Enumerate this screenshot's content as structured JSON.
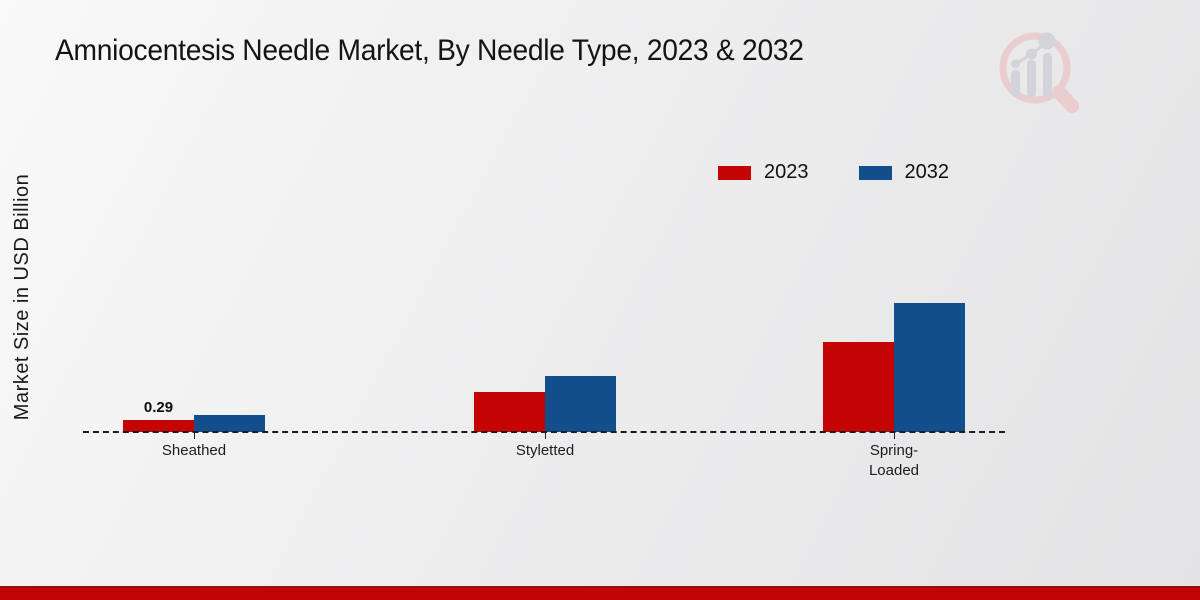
{
  "header": {
    "title": "Amniocentesis Needle Market, By Needle Type, 2023 & 2032"
  },
  "watermark": {
    "icon": "market-research-future-logo"
  },
  "chart_data": {
    "type": "bar",
    "title": "Amniocentesis Needle Market, By Needle Type, 2023 & 2032",
    "ylabel": "Market Size in USD Billion",
    "xlabel": "",
    "categories": [
      "Sheathed",
      "Styletted",
      "Spring-Loaded"
    ],
    "series": [
      {
        "name": "2023",
        "color": "#c50404",
        "values": [
          0.29,
          0.97,
          2.17
        ]
      },
      {
        "name": "2032",
        "color": "#124d8c",
        "values": [
          0.41,
          1.35,
          3.12
        ]
      }
    ],
    "annotations": [
      {
        "series": "2023",
        "category": "Sheathed",
        "label": "0.29",
        "value": 0.29
      }
    ],
    "legend_position": "top-right",
    "baseline_style": "dashed",
    "grid": false,
    "ylim": [
      0,
      3.5
    ]
  },
  "footer": {
    "bar_color": "#c10303"
  }
}
